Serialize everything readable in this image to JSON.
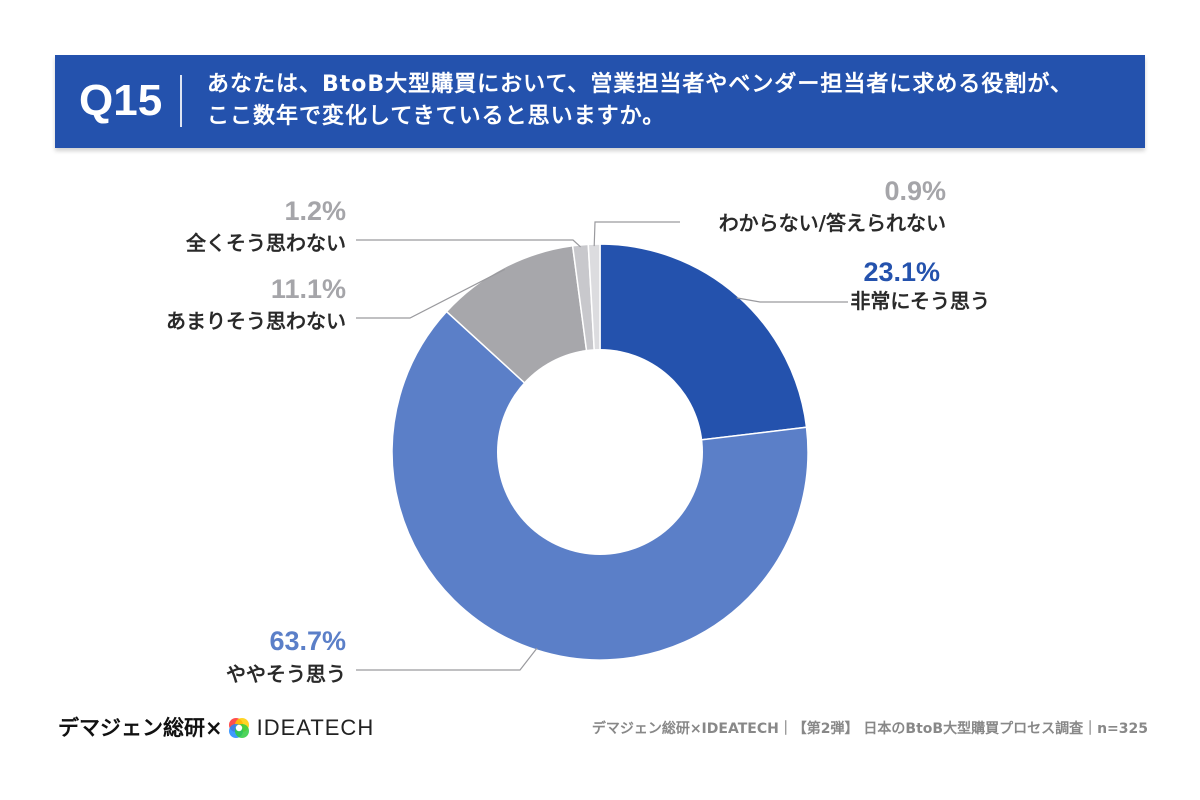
{
  "header": {
    "qnum": "Q15",
    "question_line1": "あなたは、BtoB大型購買において、営業担当者やベンダー担当者に求める役割が、",
    "question_line2": "ここ数年で変化してきていると思いますか。"
  },
  "colors": {
    "header_bg": "#2452ad",
    "very_much": "#2452ad",
    "somewhat": "#5b7fc8",
    "not_much": "#a7a7ab",
    "not_at_all": "#c8c8cc",
    "dont_know": "#dcdcdf",
    "gray_label": "#a5a5a9"
  },
  "chart_data": {
    "type": "pie",
    "donut": true,
    "slices": [
      {
        "label": "非常にそう思う",
        "value": 23.1,
        "display": "23.1%",
        "color": "#2452ad"
      },
      {
        "label": "ややそう思う",
        "value": 63.7,
        "display": "63.7%",
        "color": "#5b7fc8"
      },
      {
        "label": "あまりそう思わない",
        "value": 11.1,
        "display": "11.1%",
        "color": "#a7a7ab"
      },
      {
        "label": "全くそう思わない",
        "value": 1.2,
        "display": "1.2%",
        "color": "#c8c8cc"
      },
      {
        "label": "わからない/答えられない",
        "value": 0.9,
        "display": "0.9%",
        "color": "#dcdcdf"
      }
    ]
  },
  "footer": {
    "brand_left": "デマジェン総研×",
    "brand_idea": "IDEATECH",
    "source": "デマジェン総研×IDEATECH｜【第2弾】 日本のBtoB大型購買プロセス調査｜n=325"
  }
}
